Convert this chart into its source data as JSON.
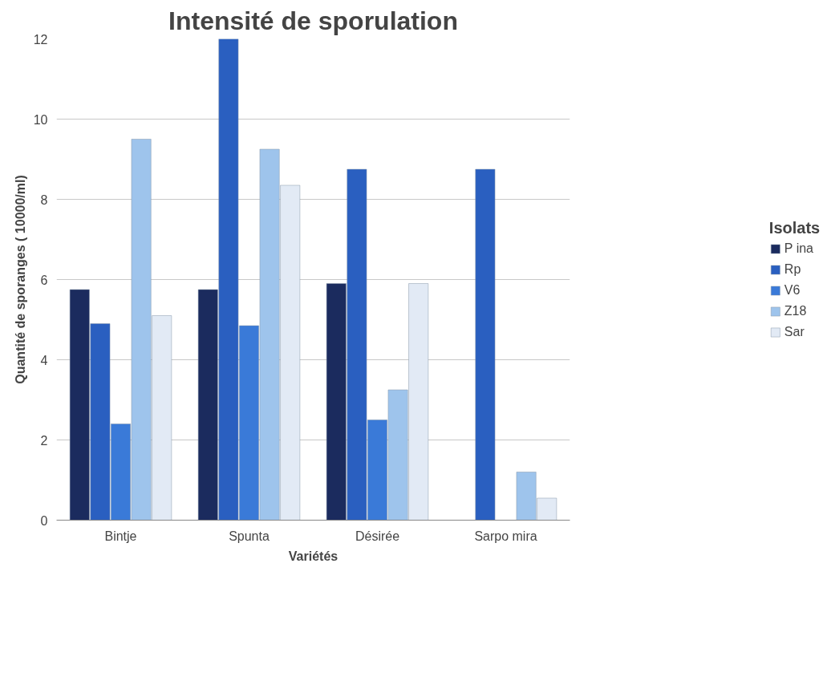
{
  "chart_data": {
    "type": "bar",
    "title": "Intensité de sporulation",
    "xlabel": "Variétés",
    "ylabel": "Quantité de sporanges ( 10000/ml)",
    "legend_title": "Isolats",
    "categories": [
      "Bintje",
      "Spunta",
      "Désirée",
      "Sarpo mira"
    ],
    "series": [
      {
        "name": "P ina",
        "color": "#1b2b5e",
        "values": [
          5.75,
          5.75,
          5.9,
          null
        ]
      },
      {
        "name": "Rp",
        "color": "#2a5fc0",
        "values": [
          4.9,
          12,
          8.75,
          8.75
        ]
      },
      {
        "name": "V6",
        "color": "#3a7ad8",
        "values": [
          2.4,
          4.85,
          2.5,
          null
        ]
      },
      {
        "name": "Z18",
        "color": "#9ec4ec",
        "values": [
          9.5,
          9.25,
          3.25,
          1.2
        ]
      },
      {
        "name": "Sar",
        "color": "#e2eaf5",
        "values": [
          5.1,
          8.35,
          5.9,
          0.55
        ]
      }
    ],
    "ylim": [
      0,
      12
    ],
    "yticks": [
      0,
      2,
      4,
      6,
      8,
      10,
      12
    ],
    "grid": "y",
    "legend": "right"
  }
}
